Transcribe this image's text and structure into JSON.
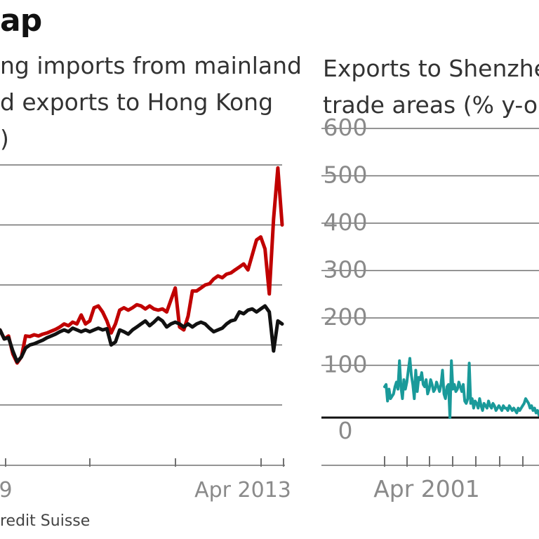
{
  "title": "ap",
  "subtitle_left": [
    "ng imports from mainland",
    "d exports to Hong Kong",
    ")"
  ],
  "subtitle_right": [
    "Exports to Shenzhe",
    "trade areas (% y-o-"
  ],
  "source": "redit Suisse",
  "colors": {
    "red_series": "#c00000",
    "black_series": "#111111",
    "teal_series": "#1a9a9a",
    "grid": "#707070",
    "tick_text": "#8a8a8a"
  },
  "chart_data": [
    {
      "type": "line",
      "title": "",
      "x_tick_labels": [
        "9",
        "Apr 2013"
      ],
      "ylabel": "",
      "grid": true,
      "y_tick_labels_visible": false,
      "series": [
        {
          "color": "#c00000",
          "values": [
            0.95,
            0.8,
            0.85,
            0.55,
            0.4,
            0.5,
            0.85,
            0.84,
            0.87,
            0.85,
            0.88,
            0.9,
            0.93,
            0.96,
            1.0,
            1.05,
            1.02,
            1.08,
            1.05,
            1.2,
            1.05,
            1.1,
            1.32,
            1.35,
            1.25,
            1.1,
            0.9,
            1.05,
            1.28,
            1.32,
            1.28,
            1.32,
            1.37,
            1.35,
            1.3,
            1.35,
            1.3,
            1.28,
            1.3,
            1.25,
            1.45,
            1.65,
            1.0,
            0.95,
            1.18,
            1.6,
            1.6,
            1.65,
            1.7,
            1.72,
            1.8,
            1.85,
            1.82,
            1.88,
            1.9,
            1.95,
            2.0,
            2.05,
            1.95,
            2.2,
            2.45,
            2.5,
            2.3,
            1.55,
            2.8,
            3.65,
            2.7
          ]
        },
        {
          "color": "#111111",
          "values": [
            0.95,
            0.8,
            0.82,
            0.6,
            0.42,
            0.5,
            0.65,
            0.7,
            0.72,
            0.75,
            0.78,
            0.82,
            0.85,
            0.88,
            0.92,
            0.95,
            0.92,
            0.98,
            0.95,
            0.92,
            0.95,
            0.92,
            0.95,
            0.98,
            0.95,
            0.97,
            0.7,
            0.75,
            0.95,
            0.92,
            0.88,
            0.95,
            1.0,
            1.05,
            1.1,
            1.02,
            1.08,
            1.15,
            1.1,
            1.0,
            1.05,
            1.08,
            1.05,
            1.0,
            1.05,
            1.0,
            1.05,
            1.08,
            1.05,
            0.98,
            0.92,
            0.95,
            0.98,
            1.05,
            1.1,
            1.12,
            1.25,
            1.22,
            1.28,
            1.3,
            1.25,
            1.3,
            1.35,
            1.25,
            0.6,
            1.1,
            1.05
          ]
        }
      ]
    },
    {
      "type": "line",
      "title": "",
      "x_tick_labels": [
        "Apr 2001"
      ],
      "y_tick_labels": [
        "600",
        "500",
        "400",
        "300",
        "200",
        "100",
        "0"
      ],
      "ylim": [
        -70,
        610
      ],
      "grid": true,
      "baseline": 0,
      "series": [
        {
          "color": "#1a9a9a",
          "values": [
            65,
            70,
            35,
            60,
            40,
            45,
            50,
            65,
            75,
            60,
            120,
            65,
            40,
            80,
            60,
            75,
            100,
            125,
            90,
            70,
            40,
            100,
            55,
            85,
            80,
            95,
            70,
            65,
            80,
            50,
            60,
            80,
            70,
            55,
            60,
            75,
            65,
            55,
            70,
            100,
            50,
            40,
            65,
            70,
            0,
            120,
            60,
            70,
            55,
            60,
            75,
            65,
            55,
            70,
            35,
            30,
            40,
            115,
            30,
            40,
            20,
            35,
            30,
            20,
            40,
            25,
            15,
            30,
            25,
            20,
            35,
            25,
            20,
            30,
            25,
            15,
            20,
            25,
            20,
            15,
            25,
            20,
            20,
            15,
            25,
            20,
            15,
            20,
            15,
            10,
            20,
            15,
            20,
            25,
            30,
            40,
            35,
            30,
            20,
            25,
            15,
            20,
            10,
            15,
            5
          ]
        }
      ]
    }
  ]
}
